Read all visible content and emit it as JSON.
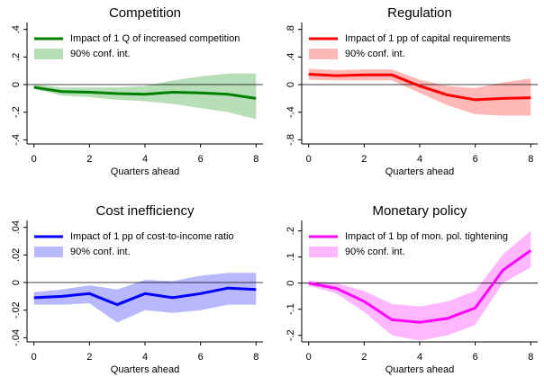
{
  "chart_data": [
    {
      "type": "line",
      "title": "Competition",
      "xlabel": "Quarters ahead",
      "x": [
        0,
        1,
        2,
        3,
        4,
        5,
        6,
        7,
        8
      ],
      "xlim": [
        -0.25,
        8.25
      ],
      "xticks": [
        0,
        2,
        4,
        6,
        8
      ],
      "ylim": [
        -0.43,
        0.45
      ],
      "yticks": [
        {
          "value": 0.4,
          "label": ".4"
        },
        {
          "value": 0.2,
          "label": ".2"
        },
        0,
        {
          "value": -0.2,
          "label": "-.2"
        },
        {
          "value": -0.4,
          "label": "-.4"
        }
      ],
      "hline": 0,
      "series": [
        {
          "name": "Impact of 1 Q of increased competition",
          "color": "#008000",
          "values": [
            -0.02,
            -0.05,
            -0.055,
            -0.065,
            -0.07,
            -0.055,
            -0.06,
            -0.07,
            -0.1
          ]
        },
        {
          "name": "90% conf. int.",
          "color": "#b8deb8",
          "lower": [
            -0.03,
            -0.08,
            -0.09,
            -0.11,
            -0.12,
            -0.14,
            -0.17,
            -0.2,
            -0.25
          ],
          "upper": [
            0,
            -0.02,
            -0.02,
            -0.02,
            -0.01,
            0.03,
            0.06,
            0.08,
            0.08
          ]
        }
      ]
    },
    {
      "type": "line",
      "title": "Regulation",
      "xlabel": "Quarters ahead",
      "x": [
        0,
        1,
        2,
        3,
        4,
        5,
        6,
        7,
        8
      ],
      "xlim": [
        -0.25,
        8.25
      ],
      "xticks": [
        0,
        2,
        4,
        6,
        8
      ],
      "ylim": [
        -0.86,
        0.9
      ],
      "yticks": [
        {
          "value": 0.8,
          "label": ".8"
        },
        {
          "value": 0.4,
          "label": ".4"
        },
        0,
        {
          "value": -0.4,
          "label": "-.4"
        },
        {
          "value": -0.8,
          "label": "-.8"
        }
      ],
      "hline": 0,
      "series": [
        {
          "name": "Impact of 1 pp of capital requirements",
          "color": "#ff0000",
          "values": [
            0.15,
            0.13,
            0.14,
            0.14,
            -0.02,
            -0.15,
            -0.22,
            -0.2,
            -0.19
          ]
        },
        {
          "name": "90% conf. int.",
          "color": "#ffb8b8",
          "lower": [
            0.07,
            0.06,
            0.06,
            0.06,
            -0.12,
            -0.3,
            -0.43,
            -0.45,
            -0.45
          ],
          "upper": [
            0.23,
            0.21,
            0.22,
            0.22,
            0.07,
            -0.02,
            -0.05,
            0.03,
            0.09
          ]
        }
      ]
    },
    {
      "type": "line",
      "title": "Cost inefficiency",
      "xlabel": "Quarters ahead",
      "x": [
        0,
        1,
        2,
        3,
        4,
        5,
        6,
        7,
        8
      ],
      "xlim": [
        -0.25,
        8.25
      ],
      "xticks": [
        0,
        2,
        4,
        6,
        8
      ],
      "ylim": [
        -0.043,
        0.045
      ],
      "yticks": [
        {
          "value": 0.04,
          "label": ".04"
        },
        {
          "value": 0.02,
          "label": ".02"
        },
        0,
        {
          "value": -0.02,
          "label": "-.02"
        },
        {
          "value": -0.04,
          "label": "-.04"
        }
      ],
      "hline": 0,
      "series": [
        {
          "name": "Impact of 1 pp of cost-to-income ratio",
          "color": "#0000ff",
          "values": [
            -0.011,
            -0.01,
            -0.008,
            -0.016,
            -0.008,
            -0.011,
            -0.008,
            -0.004,
            -0.005
          ]
        },
        {
          "name": "90% conf. int.",
          "color": "#b8b8ff",
          "lower": [
            -0.016,
            -0.016,
            -0.015,
            -0.029,
            -0.02,
            -0.022,
            -0.02,
            -0.016,
            -0.016
          ],
          "upper": [
            -0.007,
            -0.005,
            -0.002,
            -0.005,
            0.002,
            0.001,
            0.005,
            0.007,
            0.007
          ]
        }
      ]
    },
    {
      "type": "line",
      "title": "Monetary policy",
      "xlabel": "Quarters ahead",
      "x": [
        0,
        1,
        2,
        3,
        4,
        5,
        6,
        7,
        8
      ],
      "xlim": [
        -0.25,
        8.25
      ],
      "xticks": [
        0,
        2,
        4,
        6,
        8
      ],
      "ylim": [
        -0.225,
        0.24
      ],
      "yticks": [
        {
          "value": 0.2,
          "label": ".2"
        },
        {
          "value": 0.1,
          "label": ".1"
        },
        0,
        {
          "value": -0.1,
          "label": "-.1"
        },
        {
          "value": -0.2,
          "label": "-.2"
        }
      ],
      "hline": 0,
      "series": [
        {
          "name": "Impact of 1 bp of mon. pol. tightening",
          "color": "#ff00ff",
          "values": [
            0,
            -0.02,
            -0.07,
            -0.14,
            -0.15,
            -0.135,
            -0.095,
            0.05,
            0.125
          ]
        },
        {
          "name": "90% conf. int.",
          "color": "#ffb8ff",
          "lower": [
            -0.01,
            -0.04,
            -0.11,
            -0.2,
            -0.22,
            -0.2,
            -0.16,
            0,
            0.06
          ],
          "upper": [
            0.01,
            0,
            -0.03,
            -0.08,
            -0.09,
            -0.07,
            -0.03,
            0.11,
            0.2
          ]
        }
      ]
    }
  ]
}
